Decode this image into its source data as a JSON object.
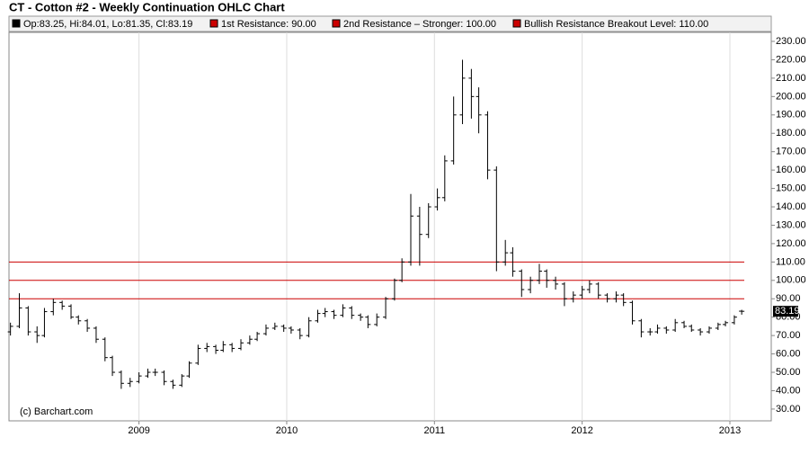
{
  "chart_data": {
    "type": "ohlc",
    "title": "CT - Cotton #2 - Weekly Continuation OHLC Chart",
    "credit": "(c) Barchart.com",
    "quote_legend": {
      "label": "Op:83.25, Hi:84.01, Lo:81.35, Cl:83.19",
      "color": "#000000"
    },
    "resistance": [
      {
        "label": "1st Resistance: 90.00",
        "value": 90,
        "color": "#cc0000"
      },
      {
        "label": "2nd Resistance – Stronger: 100.00",
        "value": 100,
        "color": "#cc0000"
      },
      {
        "label": "Bullish Resistance Breakout Level: 110.00",
        "value": 110,
        "color": "#cc0000"
      }
    ],
    "last_price": {
      "value": 83.19,
      "label": "83.19"
    },
    "color": "#000000",
    "x": [
      2008.13,
      2008.19,
      2008.25,
      2008.31,
      2008.36,
      2008.42,
      2008.48,
      2008.54,
      2008.59,
      2008.65,
      2008.71,
      2008.77,
      2008.82,
      2008.88,
      2008.94,
      2009.0,
      2009.06,
      2009.11,
      2009.17,
      2009.23,
      2009.29,
      2009.34,
      2009.4,
      2009.46,
      2009.52,
      2009.57,
      2009.63,
      2009.69,
      2009.75,
      2009.8,
      2009.86,
      2009.92,
      2009.98,
      2010.03,
      2010.09,
      2010.15,
      2010.21,
      2010.26,
      2010.32,
      2010.38,
      2010.44,
      2010.5,
      2010.55,
      2010.61,
      2010.67,
      2010.73,
      2010.78,
      2010.84,
      2010.9,
      2010.96,
      2011.02,
      2011.07,
      2011.13,
      2011.19,
      2011.25,
      2011.3,
      2011.36,
      2011.42,
      2011.48,
      2011.53,
      2011.59,
      2011.65,
      2011.71,
      2011.76,
      2011.82,
      2011.88,
      2011.94,
      2012.0,
      2012.05,
      2012.11,
      2012.17,
      2012.23,
      2012.28,
      2012.34,
      2012.4,
      2012.46,
      2012.51,
      2012.57,
      2012.63,
      2012.69,
      2012.74,
      2012.8,
      2012.86,
      2012.92,
      2012.97,
      2013.03,
      2013.08
    ],
    "open": [
      72,
      75,
      85,
      72,
      70,
      83,
      88,
      86,
      80,
      78,
      74,
      68,
      58,
      50,
      44,
      45,
      48,
      50,
      50,
      45,
      43,
      48,
      55,
      63,
      64,
      62,
      65,
      63,
      66,
      68,
      71,
      74,
      75,
      74,
      73,
      70,
      78,
      82,
      83,
      81,
      85,
      81,
      80,
      76,
      80,
      90,
      100,
      110,
      135,
      125,
      140,
      145,
      165,
      190,
      210,
      200,
      190,
      160,
      110,
      115,
      105,
      95,
      100,
      105,
      100,
      98,
      90,
      92,
      95,
      98,
      92,
      90,
      92,
      88,
      78,
      72,
      72,
      74,
      73,
      77,
      75,
      73,
      72,
      74,
      76,
      77,
      83.25
    ],
    "high": [
      77,
      93,
      86,
      75,
      85,
      90,
      89,
      87,
      81,
      79,
      75,
      69,
      59,
      51,
      47,
      50,
      52,
      52,
      51,
      46,
      49,
      56,
      65,
      66,
      65,
      67,
      66,
      68,
      70,
      72,
      76,
      77,
      76,
      75,
      74,
      80,
      84,
      85,
      84,
      87,
      86,
      82,
      81,
      82,
      91,
      101,
      112,
      147,
      140,
      142,
      150,
      168,
      200,
      220,
      215,
      205,
      192,
      162,
      122,
      118,
      106,
      102,
      109,
      106,
      102,
      99,
      94,
      97,
      100,
      99,
      93,
      94,
      93,
      89,
      79,
      74,
      76,
      75,
      79,
      78,
      76,
      74,
      75,
      77,
      78,
      81,
      84.01
    ],
    "low": [
      70,
      74,
      70,
      66,
      69,
      81,
      84,
      79,
      76,
      72,
      66,
      56,
      48,
      41,
      42,
      44,
      47,
      48,
      43,
      41,
      42,
      47,
      54,
      61,
      60,
      61,
      61,
      62,
      65,
      67,
      70,
      73,
      72,
      71,
      68,
      69,
      77,
      80,
      79,
      80,
      79,
      78,
      74,
      75,
      79,
      89,
      99,
      108,
      108,
      123,
      138,
      143,
      163,
      185,
      188,
      180,
      155,
      105,
      108,
      102,
      91,
      93,
      98,
      96,
      95,
      86,
      88,
      90,
      93,
      90,
      88,
      88,
      86,
      76,
      69,
      70,
      71,
      71,
      72,
      74,
      72,
      70,
      71,
      73,
      75,
      76,
      81.35
    ],
    "close": [
      75,
      85,
      72,
      70,
      83,
      88,
      86,
      80,
      78,
      74,
      68,
      58,
      50,
      44,
      45,
      48,
      50,
      50,
      45,
      43,
      48,
      55,
      63,
      64,
      62,
      65,
      63,
      66,
      68,
      71,
      74,
      75,
      74,
      73,
      70,
      78,
      82,
      83,
      81,
      85,
      81,
      80,
      76,
      80,
      90,
      100,
      110,
      135,
      125,
      140,
      145,
      165,
      190,
      210,
      200,
      190,
      160,
      110,
      115,
      105,
      95,
      100,
      105,
      100,
      98,
      90,
      92,
      95,
      98,
      92,
      90,
      92,
      88,
      78,
      72,
      72,
      74,
      73,
      77,
      75,
      73,
      72,
      74,
      76,
      77,
      80,
      83.19
    ],
    "xlim": [
      2008.12,
      2013.28
    ],
    "xticks": [
      2009,
      2010,
      2011,
      2012,
      2013
    ],
    "ylim": [
      23.6,
      234.9
    ],
    "yticks": [
      {
        "value": 30,
        "label": "30.00"
      },
      {
        "value": 40,
        "label": "40.00"
      },
      {
        "value": 50,
        "label": "50.00"
      },
      {
        "value": 60,
        "label": "60.00"
      },
      {
        "value": 70,
        "label": "70.00"
      },
      {
        "value": 80,
        "label": "80.00"
      },
      {
        "value": 90,
        "label": "90.00"
      },
      {
        "value": 100,
        "label": "100.00"
      },
      {
        "value": 110,
        "label": "110.00"
      },
      {
        "value": 120,
        "label": "120.00"
      },
      {
        "value": 130,
        "label": "130.00"
      },
      {
        "value": 140,
        "label": "140.00"
      },
      {
        "value": 150,
        "label": "150.00"
      },
      {
        "value": 160,
        "label": "160.00"
      },
      {
        "value": 170,
        "label": "170.00"
      },
      {
        "value": 180,
        "label": "180.00"
      },
      {
        "value": 190,
        "label": "190.00"
      },
      {
        "value": 200,
        "label": "200.00"
      },
      {
        "value": 210,
        "label": "210.00"
      },
      {
        "value": 220,
        "label": "220.00"
      },
      {
        "value": 230,
        "label": "230.00"
      }
    ],
    "grid": true
  }
}
